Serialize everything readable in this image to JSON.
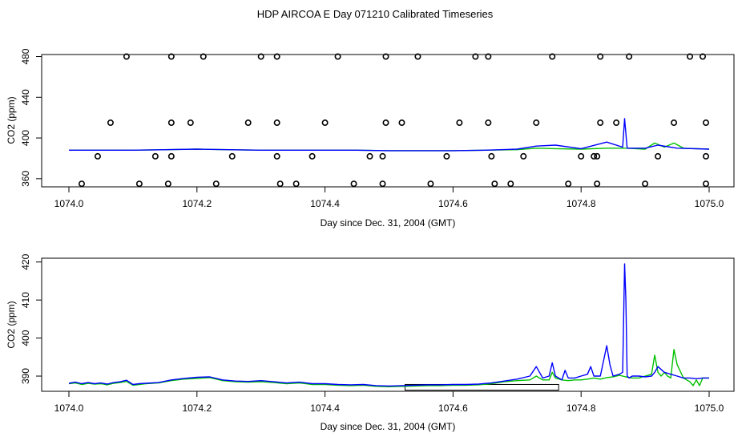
{
  "title": "HDP AIRCOA E  Day 071210  Calibrated Timeseries",
  "colors": {
    "axis": "#000000",
    "series_a": "#00c000",
    "series_b": "#0000ff",
    "points": "#000000"
  },
  "chart_data": [
    {
      "type": "line",
      "xlabel": "Day since Dec. 31, 2004 (GMT)",
      "ylabel": "CO2 (ppm)",
      "xlim": [
        1074.0,
        1075.0
      ],
      "ylim": [
        352,
        482
      ],
      "xticks": [
        "1074.0",
        "1074.2",
        "1074.4",
        "1074.6",
        "1074.8",
        "1075.0"
      ],
      "yticks": [
        "360",
        "400",
        "440",
        "480"
      ],
      "calibration_points": [
        [
          1074.09,
          480
        ],
        [
          1074.16,
          480
        ],
        [
          1074.21,
          480
        ],
        [
          1074.3,
          480
        ],
        [
          1074.325,
          480
        ],
        [
          1074.42,
          480
        ],
        [
          1074.495,
          480
        ],
        [
          1074.545,
          480
        ],
        [
          1074.635,
          480
        ],
        [
          1074.655,
          480
        ],
        [
          1074.755,
          480
        ],
        [
          1074.83,
          480
        ],
        [
          1074.875,
          480
        ],
        [
          1074.97,
          480
        ],
        [
          1074.99,
          480
        ],
        [
          1074.065,
          415
        ],
        [
          1074.16,
          415
        ],
        [
          1074.19,
          415
        ],
        [
          1074.28,
          415
        ],
        [
          1074.325,
          415
        ],
        [
          1074.4,
          415
        ],
        [
          1074.495,
          415
        ],
        [
          1074.52,
          415
        ],
        [
          1074.61,
          415
        ],
        [
          1074.655,
          415
        ],
        [
          1074.73,
          415
        ],
        [
          1074.83,
          415
        ],
        [
          1074.855,
          415
        ],
        [
          1074.945,
          415
        ],
        [
          1074.995,
          415
        ],
        [
          1074.045,
          382
        ],
        [
          1074.135,
          382
        ],
        [
          1074.16,
          382
        ],
        [
          1074.255,
          382
        ],
        [
          1074.325,
          382
        ],
        [
          1074.38,
          382
        ],
        [
          1074.47,
          382
        ],
        [
          1074.49,
          382
        ],
        [
          1074.59,
          382
        ],
        [
          1074.66,
          382
        ],
        [
          1074.71,
          382
        ],
        [
          1074.8,
          382
        ],
        [
          1074.82,
          382
        ],
        [
          1074.825,
          382
        ],
        [
          1074.92,
          382
        ],
        [
          1074.995,
          382
        ],
        [
          1074.02,
          355
        ],
        [
          1074.11,
          355
        ],
        [
          1074.155,
          355
        ],
        [
          1074.23,
          355
        ],
        [
          1074.33,
          355
        ],
        [
          1074.355,
          355
        ],
        [
          1074.445,
          355
        ],
        [
          1074.49,
          355
        ],
        [
          1074.565,
          355
        ],
        [
          1074.665,
          355
        ],
        [
          1074.69,
          355
        ],
        [
          1074.78,
          355
        ],
        [
          1074.825,
          355
        ],
        [
          1074.9,
          355
        ],
        [
          1074.995,
          355
        ]
      ],
      "series": [
        {
          "color": "#00c000",
          "x": [
            1074.0,
            1074.05,
            1074.1,
            1074.15,
            1074.2,
            1074.25,
            1074.3,
            1074.35,
            1074.4,
            1074.45,
            1074.5,
            1074.55,
            1074.6,
            1074.65,
            1074.7,
            1074.73,
            1074.76,
            1074.8,
            1074.84,
            1074.87,
            1074.9,
            1074.915,
            1074.93,
            1074.945,
            1074.96,
            1075.0
          ],
          "y": [
            388,
            388,
            388,
            388.5,
            389,
            388.5,
            388,
            388,
            388,
            388,
            387.5,
            387.5,
            387.5,
            388,
            388.5,
            390,
            389.5,
            389,
            390,
            390,
            389,
            395,
            391,
            395,
            390,
            389
          ]
        },
        {
          "color": "#0000ff",
          "x": [
            1074.0,
            1074.05,
            1074.1,
            1074.15,
            1074.2,
            1074.25,
            1074.3,
            1074.35,
            1074.4,
            1074.45,
            1074.5,
            1074.55,
            1074.6,
            1074.65,
            1074.7,
            1074.73,
            1074.76,
            1074.8,
            1074.84,
            1074.865,
            1074.868,
            1074.872,
            1074.9,
            1074.92,
            1074.95,
            1075.0
          ],
          "y": [
            388,
            388,
            388,
            388.5,
            389,
            388.5,
            388,
            388,
            388,
            388,
            387.5,
            387.5,
            387.5,
            388,
            389,
            392,
            393,
            389.5,
            396,
            391,
            419,
            390,
            390,
            393,
            390,
            389
          ]
        }
      ]
    },
    {
      "type": "line",
      "xlabel": "Day since Dec. 31, 2004 (GMT)",
      "ylabel": "CO2 (ppm)",
      "xlim": [
        1074.0,
        1075.0
      ],
      "ylim": [
        386,
        421
      ],
      "xticks": [
        "1074.0",
        "1074.2",
        "1074.4",
        "1074.6",
        "1074.8",
        "1075.0"
      ],
      "yticks": [
        "390",
        "400",
        "410",
        "420"
      ],
      "flag_box": {
        "x": [
          1074.525,
          1074.765
        ],
        "y": [
          386.3,
          387.8
        ]
      },
      "series": [
        {
          "color": "#00c000",
          "x": [
            1074.0,
            1074.01,
            1074.02,
            1074.03,
            1074.04,
            1074.05,
            1074.06,
            1074.07,
            1074.08,
            1074.09,
            1074.1,
            1074.11,
            1074.12,
            1074.14,
            1074.16,
            1074.18,
            1074.2,
            1074.22,
            1074.24,
            1074.26,
            1074.28,
            1074.3,
            1074.32,
            1074.34,
            1074.36,
            1074.38,
            1074.4,
            1074.42,
            1074.44,
            1074.46,
            1074.48,
            1074.5,
            1074.52,
            1074.54,
            1074.56,
            1074.58,
            1074.6,
            1074.62,
            1074.64,
            1074.66,
            1074.68,
            1074.7,
            1074.72,
            1074.73,
            1074.74,
            1074.75,
            1074.755,
            1074.76,
            1074.77,
            1074.78,
            1074.79,
            1074.8,
            1074.81,
            1074.82,
            1074.83,
            1074.84,
            1074.85,
            1074.86,
            1074.87,
            1074.88,
            1074.89,
            1074.9,
            1074.91,
            1074.915,
            1074.92,
            1074.925,
            1074.93,
            1074.935,
            1074.94,
            1074.945,
            1074.95,
            1074.96,
            1074.97,
            1074.975,
            1074.98,
            1074.985,
            1074.99,
            1075.0
          ],
          "y": [
            388,
            388.2,
            387.8,
            388.1,
            387.9,
            388,
            387.7,
            388.1,
            388.3,
            388.6,
            387.6,
            387.8,
            388,
            388.2,
            388.8,
            389.2,
            389.4,
            389.6,
            388.8,
            388.5,
            388.4,
            388.5,
            388.3,
            388,
            388.2,
            387.8,
            387.8,
            387.6,
            387.5,
            387.6,
            387.3,
            387.2,
            387.3,
            387.4,
            387.5,
            387.5,
            387.6,
            387.6,
            387.7,
            388,
            388.5,
            388.8,
            389,
            390,
            389,
            389,
            391,
            389.5,
            389,
            388.8,
            389,
            389,
            389.2,
            389.5,
            389.2,
            389.6,
            389.8,
            390.2,
            389.8,
            389.5,
            389.5,
            390,
            390.5,
            395.5,
            391,
            390,
            391,
            390,
            389.5,
            397,
            393,
            389.5,
            388.5,
            387.5,
            389,
            387.5,
            389.5,
            389.5
          ]
        },
        {
          "color": "#0000ff",
          "x": [
            1074.0,
            1074.01,
            1074.02,
            1074.03,
            1074.04,
            1074.05,
            1074.06,
            1074.07,
            1074.08,
            1074.09,
            1074.1,
            1074.11,
            1074.12,
            1074.14,
            1074.16,
            1074.18,
            1074.2,
            1074.22,
            1074.24,
            1074.26,
            1074.28,
            1074.3,
            1074.32,
            1074.34,
            1074.36,
            1074.38,
            1074.4,
            1074.42,
            1074.44,
            1074.46,
            1074.48,
            1074.5,
            1074.52,
            1074.54,
            1074.56,
            1074.58,
            1074.6,
            1074.62,
            1074.64,
            1074.66,
            1074.68,
            1074.7,
            1074.72,
            1074.73,
            1074.735,
            1074.74,
            1074.75,
            1074.755,
            1074.76,
            1074.77,
            1074.775,
            1074.78,
            1074.79,
            1074.8,
            1074.81,
            1074.815,
            1074.82,
            1074.83,
            1074.84,
            1074.845,
            1074.85,
            1074.86,
            1074.865,
            1074.868,
            1074.87,
            1074.872,
            1074.875,
            1074.88,
            1074.89,
            1074.9,
            1074.91,
            1074.915,
            1074.92,
            1074.93,
            1074.94,
            1074.95,
            1074.96,
            1074.97,
            1074.98,
            1074.99,
            1075.0
          ],
          "y": [
            388.1,
            388.4,
            388,
            388.3,
            388,
            388.2,
            387.9,
            388.3,
            388.5,
            388.9,
            387.8,
            388,
            388.1,
            388.3,
            389,
            389.4,
            389.7,
            389.8,
            389,
            388.7,
            388.6,
            388.8,
            388.5,
            388.2,
            388.4,
            388,
            388,
            387.8,
            387.7,
            387.8,
            387.5,
            387.4,
            387.5,
            387.6,
            387.7,
            387.7,
            387.8,
            387.8,
            387.9,
            388.2,
            388.7,
            389.2,
            390,
            392.5,
            391,
            389.5,
            390,
            393.5,
            390,
            389,
            391.5,
            389.5,
            389.5,
            390,
            390.5,
            392.5,
            390,
            390,
            398,
            393,
            390,
            390.5,
            391,
            419.5,
            410,
            390,
            389.5,
            390,
            390,
            389.8,
            390,
            391,
            392.5,
            391,
            390.5,
            390,
            389.5,
            389.5,
            389.3,
            389.5,
            389.5
          ]
        }
      ]
    }
  ]
}
